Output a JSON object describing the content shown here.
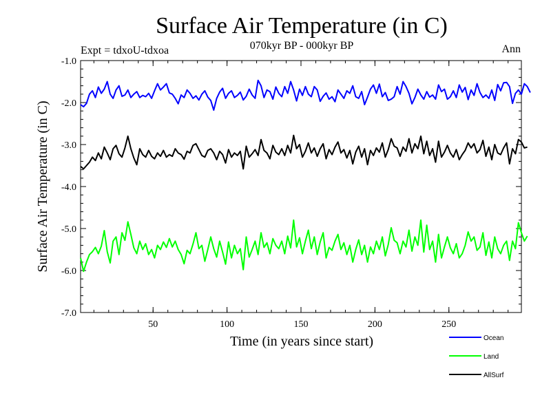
{
  "chart_data": {
    "type": "line",
    "title": "Surface Air Temperature (in C)",
    "subtitle": "070kyr BP - 000kyr BP",
    "experiment_label": "Expt = tdxoU-tdxoa",
    "season_label": "Ann",
    "xlabel": "Time (in years since start)",
    "ylabel": "Surface Air Temperature (in C)",
    "xlim": [
      1,
      299
    ],
    "ylim": [
      -7.0,
      -1.0
    ],
    "x_ticks": [
      50,
      100,
      150,
      200,
      250
    ],
    "x_tick_labels": [
      "50",
      "100",
      "150",
      "200",
      "250"
    ],
    "y_ticks": [
      -1.0,
      -2.0,
      -3.0,
      -4.0,
      -5.0,
      -6.0,
      -7.0
    ],
    "y_tick_labels": [
      "-1.0",
      "-2.0",
      "-3.0",
      "-4.0",
      "-5.0",
      "-6.0",
      "-7.0"
    ],
    "grid": false,
    "legend_position": "bottom-right, below plot",
    "series": [
      {
        "name": "Ocean",
        "color": "#0000ff",
        "x_start": 1,
        "x_step": 2,
        "values": [
          -2.05,
          -2.1,
          -2.02,
          -1.8,
          -1.72,
          -1.88,
          -1.63,
          -1.78,
          -1.68,
          -1.5,
          -1.8,
          -1.9,
          -1.7,
          -1.6,
          -1.85,
          -1.82,
          -1.7,
          -1.88,
          -1.8,
          -1.74,
          -1.88,
          -1.83,
          -1.86,
          -1.78,
          -1.9,
          -1.72,
          -1.55,
          -1.7,
          -1.63,
          -1.55,
          -1.77,
          -1.8,
          -1.9,
          -2.03,
          -1.82,
          -1.88,
          -1.7,
          -1.78,
          -1.9,
          -1.84,
          -1.94,
          -1.8,
          -1.72,
          -1.87,
          -1.95,
          -2.18,
          -1.9,
          -1.75,
          -1.66,
          -1.9,
          -1.78,
          -1.72,
          -1.88,
          -1.83,
          -1.75,
          -1.94,
          -1.85,
          -1.68,
          -1.82,
          -1.9,
          -1.47,
          -1.6,
          -1.88,
          -1.7,
          -1.74,
          -1.92,
          -1.63,
          -1.78,
          -1.86,
          -1.62,
          -1.78,
          -1.5,
          -1.7,
          -1.96,
          -1.68,
          -1.83,
          -1.62,
          -1.8,
          -1.86,
          -1.62,
          -1.7,
          -1.97,
          -1.85,
          -1.77,
          -1.92,
          -1.86,
          -1.98,
          -1.7,
          -1.8,
          -1.9,
          -1.72,
          -1.78,
          -1.6,
          -1.86,
          -1.9,
          -1.74,
          -2.05,
          -1.87,
          -1.68,
          -1.58,
          -1.78,
          -1.56,
          -1.86,
          -1.76,
          -1.95,
          -1.92,
          -1.86,
          -1.62,
          -1.8,
          -1.5,
          -1.62,
          -1.78,
          -2.03,
          -1.88,
          -1.68,
          -1.82,
          -1.92,
          -1.74,
          -1.87,
          -1.82,
          -1.92,
          -1.58,
          -1.74,
          -1.68,
          -1.92,
          -1.86,
          -1.72,
          -1.88,
          -1.58,
          -1.75,
          -1.64,
          -1.93,
          -1.7,
          -1.83,
          -1.55,
          -1.76,
          -1.88,
          -1.82,
          -1.9,
          -1.7,
          -1.95,
          -1.57,
          -1.72,
          -1.53,
          -1.52,
          -1.62,
          -2.02,
          -1.78,
          -1.7,
          -1.8,
          -1.55,
          -1.62,
          -1.76
        ]
      },
      {
        "name": "Land",
        "color": "#00ff00",
        "x_start": 1,
        "x_step": 2,
        "values": [
          -5.7,
          -6.02,
          -5.8,
          -5.62,
          -5.55,
          -5.45,
          -5.6,
          -5.42,
          -5.05,
          -5.55,
          -5.82,
          -5.3,
          -5.2,
          -5.62,
          -5.1,
          -5.28,
          -4.84,
          -5.14,
          -5.46,
          -5.6,
          -5.3,
          -5.5,
          -5.36,
          -5.62,
          -5.5,
          -5.7,
          -5.4,
          -5.5,
          -5.32,
          -5.45,
          -5.24,
          -5.44,
          -5.3,
          -5.5,
          -5.62,
          -5.84,
          -5.52,
          -5.6,
          -5.37,
          -5.1,
          -5.48,
          -5.4,
          -5.78,
          -5.5,
          -5.2,
          -5.48,
          -5.68,
          -5.3,
          -5.56,
          -5.85,
          -5.32,
          -5.7,
          -5.4,
          -5.6,
          -5.48,
          -5.98,
          -5.2,
          -5.68,
          -5.5,
          -5.3,
          -5.62,
          -5.1,
          -5.45,
          -5.34,
          -5.6,
          -5.24,
          -5.4,
          -5.48,
          -5.3,
          -5.6,
          -5.18,
          -5.46,
          -4.8,
          -5.44,
          -5.22,
          -5.6,
          -5.3,
          -5.04,
          -5.48,
          -5.2,
          -5.62,
          -5.32,
          -5.1,
          -5.7,
          -5.45,
          -5.52,
          -5.3,
          -5.14,
          -5.5,
          -5.34,
          -5.62,
          -5.4,
          -5.8,
          -5.5,
          -5.27,
          -5.62,
          -5.4,
          -5.8,
          -5.44,
          -5.6,
          -5.3,
          -5.5,
          -5.2,
          -5.65,
          -5.38,
          -4.98,
          -5.28,
          -5.34,
          -5.6,
          -5.3,
          -5.44,
          -5.04,
          -5.54,
          -5.2,
          -5.4,
          -4.8,
          -5.56,
          -4.92,
          -5.5,
          -5.3,
          -5.8,
          -5.14,
          -5.7,
          -5.44,
          -5.2,
          -5.46,
          -5.6,
          -5.36,
          -5.7,
          -5.6,
          -5.4,
          -5.08,
          -5.3,
          -5.2,
          -5.52,
          -5.44,
          -5.1,
          -5.64,
          -5.32,
          -5.7,
          -5.2,
          -5.48,
          -5.6,
          -5.4,
          -5.3,
          -5.76,
          -5.3,
          -5.48,
          -4.86,
          -5.1,
          -5.3,
          -5.18
        ]
      },
      {
        "name": "AllSurf",
        "color": "#000000",
        "x_start": 1,
        "x_step": 2,
        "values": [
          -3.52,
          -3.58,
          -3.5,
          -3.42,
          -3.3,
          -3.38,
          -3.2,
          -3.34,
          -3.06,
          -3.2,
          -3.36,
          -3.1,
          -3.02,
          -3.22,
          -3.3,
          -3.08,
          -2.8,
          -3.1,
          -3.32,
          -3.48,
          -3.1,
          -3.24,
          -3.3,
          -3.14,
          -3.28,
          -3.34,
          -3.2,
          -3.28,
          -3.14,
          -3.3,
          -3.24,
          -3.28,
          -3.1,
          -3.2,
          -3.24,
          -3.35,
          -3.16,
          -3.2,
          -3.02,
          -2.98,
          -3.12,
          -3.26,
          -3.3,
          -3.14,
          -3.1,
          -3.2,
          -3.36,
          -3.16,
          -3.24,
          -3.44,
          -3.12,
          -3.3,
          -3.2,
          -3.26,
          -3.16,
          -3.58,
          -3.04,
          -3.3,
          -3.22,
          -3.12,
          -3.26,
          -2.88,
          -3.14,
          -3.2,
          -3.34,
          -3.02,
          -3.18,
          -3.24,
          -3.1,
          -3.26,
          -3.02,
          -3.2,
          -2.78,
          -3.1,
          -3.0,
          -3.3,
          -3.16,
          -2.96,
          -3.2,
          -3.08,
          -3.28,
          -3.1,
          -2.98,
          -3.34,
          -3.12,
          -3.24,
          -3.06,
          -2.94,
          -3.2,
          -3.12,
          -3.32,
          -3.14,
          -3.46,
          -3.18,
          -3.04,
          -3.3,
          -3.1,
          -3.48,
          -3.14,
          -3.26,
          -3.08,
          -3.18,
          -2.96,
          -3.3,
          -3.12,
          -2.86,
          -3.04,
          -3.08,
          -3.28,
          -3.06,
          -3.16,
          -2.86,
          -3.2,
          -2.98,
          -3.1,
          -2.8,
          -3.22,
          -2.92,
          -3.26,
          -3.1,
          -3.42,
          -2.92,
          -3.3,
          -3.18,
          -3.02,
          -3.2,
          -3.3,
          -3.12,
          -3.36,
          -3.24,
          -3.14,
          -2.96,
          -3.08,
          -2.98,
          -3.2,
          -3.12,
          -2.9,
          -3.28,
          -3.06,
          -3.36,
          -3.0,
          -3.2,
          -3.24,
          -3.08,
          -2.96,
          -3.46,
          -3.1,
          -3.22,
          -2.88,
          -2.94,
          -3.08,
          -3.06
        ]
      }
    ]
  }
}
